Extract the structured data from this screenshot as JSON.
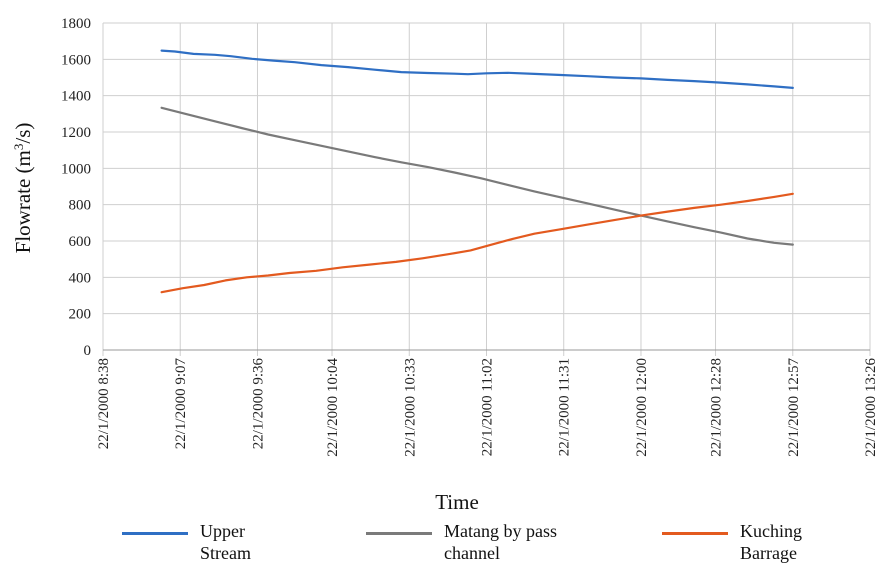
{
  "chart_data": {
    "type": "line",
    "xlabel": "Time",
    "ylabel_main": "Flowrate (m",
    "ylabel_sup": "3",
    "ylabel_tail": "/s)",
    "ylim": [
      0,
      1800
    ],
    "yticks": [
      0,
      200,
      400,
      600,
      800,
      1000,
      1200,
      1400,
      1600,
      1800
    ],
    "xlim_minutes": [
      518,
      806
    ],
    "xticks": [
      {
        "label": "22/1/2000 8:38",
        "minute": 518
      },
      {
        "label": "22/1/2000 9:07",
        "minute": 547
      },
      {
        "label": "22/1/2000 9:36",
        "minute": 576
      },
      {
        "label": "22/1/2000 10:04",
        "minute": 604
      },
      {
        "label": "22/1/2000 10:33",
        "minute": 633
      },
      {
        "label": "22/1/2000 11:02",
        "minute": 662
      },
      {
        "label": "22/1/2000 11:31",
        "minute": 691
      },
      {
        "label": "22/1/2000 12:00",
        "minute": 720
      },
      {
        "label": "22/1/2000 12:28",
        "minute": 748
      },
      {
        "label": "22/1/2000 12:57",
        "minute": 777
      },
      {
        "label": "22/1/2000 13:26",
        "minute": 806
      }
    ],
    "grid": true,
    "legend_position": "bottom",
    "series": [
      {
        "name": "Upper Stream",
        "label_lines": [
          "Upper",
          "Stream"
        ],
        "color": "#2f6fc4",
        "points": [
          [
            540,
            1648
          ],
          [
            545,
            1643
          ],
          [
            552,
            1630
          ],
          [
            560,
            1625
          ],
          [
            566,
            1617
          ],
          [
            574,
            1603
          ],
          [
            582,
            1593
          ],
          [
            590,
            1584
          ],
          [
            600,
            1568
          ],
          [
            610,
            1557
          ],
          [
            620,
            1543
          ],
          [
            630,
            1530
          ],
          [
            640,
            1525
          ],
          [
            650,
            1521
          ],
          [
            655,
            1518
          ],
          [
            662,
            1523
          ],
          [
            670,
            1526
          ],
          [
            680,
            1520
          ],
          [
            690,
            1514
          ],
          [
            700,
            1507
          ],
          [
            710,
            1500
          ],
          [
            720,
            1495
          ],
          [
            730,
            1487
          ],
          [
            740,
            1480
          ],
          [
            750,
            1472
          ],
          [
            760,
            1462
          ],
          [
            770,
            1451
          ],
          [
            777,
            1443
          ]
        ]
      },
      {
        "name": "Matang by pass channel",
        "label_lines": [
          "Matang by pass",
          "channel"
        ],
        "color": "#7a7a7a",
        "points": [
          [
            540,
            1333
          ],
          [
            550,
            1296
          ],
          [
            560,
            1259
          ],
          [
            570,
            1222
          ],
          [
            580,
            1186
          ],
          [
            590,
            1155
          ],
          [
            600,
            1124
          ],
          [
            610,
            1093
          ],
          [
            620,
            1062
          ],
          [
            630,
            1033
          ],
          [
            640,
            1007
          ],
          [
            650,
            977
          ],
          [
            660,
            945
          ],
          [
            670,
            909
          ],
          [
            680,
            873
          ],
          [
            690,
            840
          ],
          [
            700,
            807
          ],
          [
            710,
            773
          ],
          [
            720,
            740
          ],
          [
            730,
            708
          ],
          [
            740,
            676
          ],
          [
            750,
            646
          ],
          [
            760,
            614
          ],
          [
            770,
            590
          ],
          [
            777,
            580
          ]
        ]
      },
      {
        "name": "Kuching Barrage",
        "label_lines": [
          "Kuching",
          "Barrage"
        ],
        "color": "#e35a1f",
        "points": [
          [
            540,
            318
          ],
          [
            548,
            340
          ],
          [
            556,
            358
          ],
          [
            564,
            383
          ],
          [
            572,
            400
          ],
          [
            580,
            410
          ],
          [
            588,
            424
          ],
          [
            598,
            436
          ],
          [
            608,
            455
          ],
          [
            618,
            470
          ],
          [
            628,
            485
          ],
          [
            638,
            505
          ],
          [
            648,
            528
          ],
          [
            656,
            548
          ],
          [
            664,
            580
          ],
          [
            672,
            612
          ],
          [
            680,
            640
          ],
          [
            690,
            665
          ],
          [
            700,
            690
          ],
          [
            710,
            715
          ],
          [
            720,
            740
          ],
          [
            730,
            762
          ],
          [
            740,
            782
          ],
          [
            750,
            800
          ],
          [
            760,
            820
          ],
          [
            770,
            843
          ],
          [
            777,
            860
          ]
        ]
      }
    ]
  }
}
